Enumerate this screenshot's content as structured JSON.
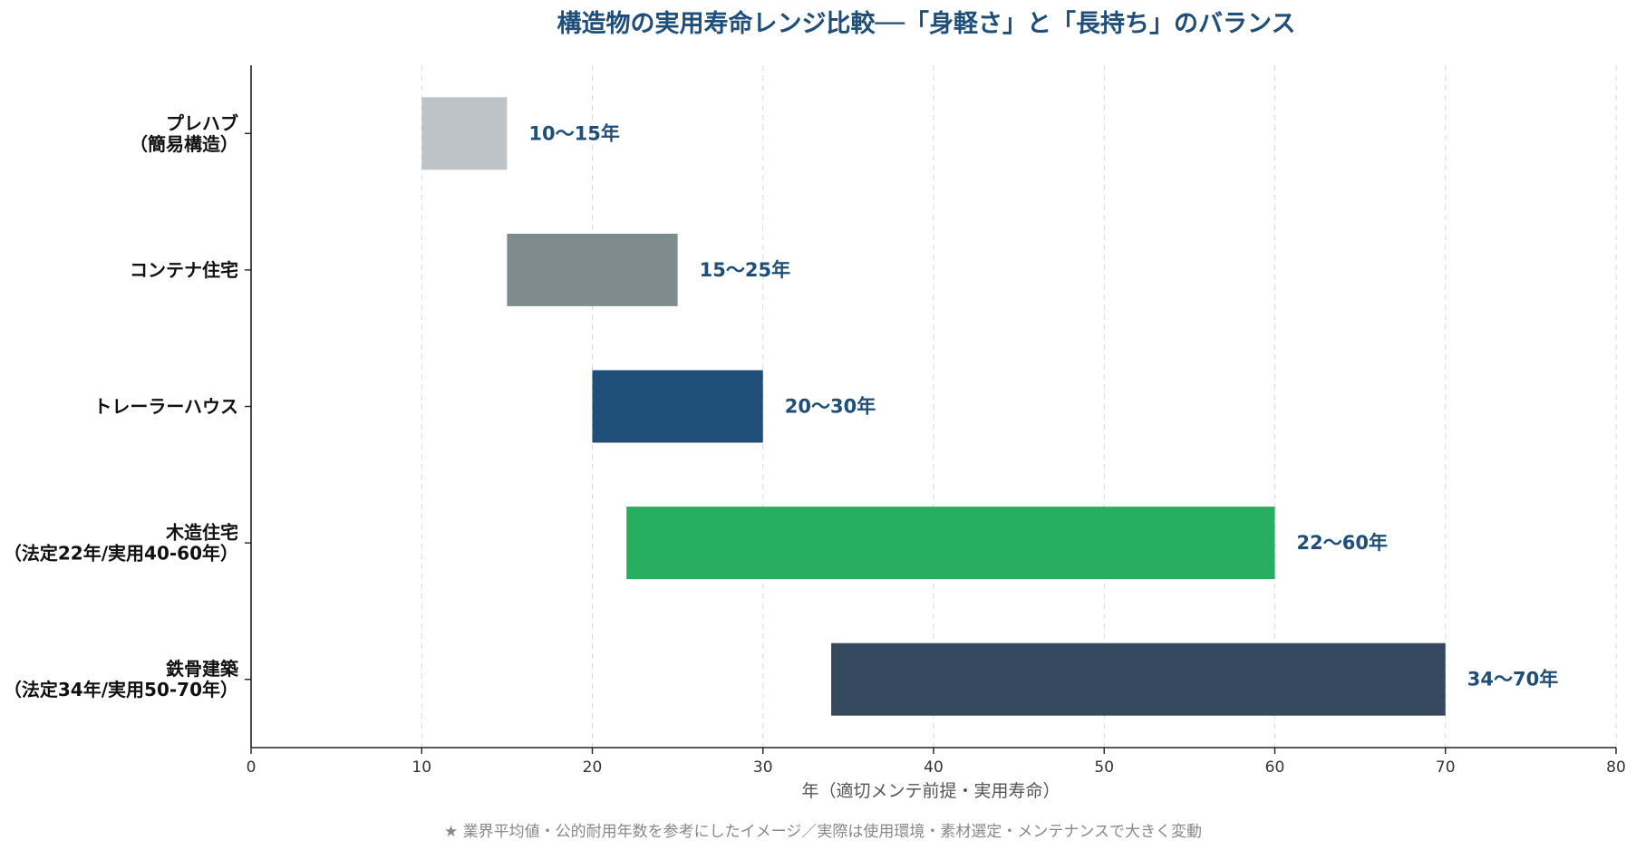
{
  "chart_data": {
    "type": "bar",
    "orientation": "horizontal",
    "subtype": "range",
    "title": "構造物の実用寿命レンジ比較──「身軽さ」と「長持ち」のバランス",
    "xlabel": "年（適切メンテ前提・実用寿命）",
    "ylabel": "",
    "xlim": [
      0,
      80
    ],
    "xticks": [
      0,
      10,
      20,
      30,
      40,
      50,
      60,
      70,
      80
    ],
    "grid": "vertical-dashed",
    "categories": [
      [
        "プレハブ",
        "（簡易構造）"
      ],
      [
        "コンテナ住宅"
      ],
      [
        "トレーラーハウス"
      ],
      [
        "木造住宅",
        "（法定22年/実用40-60年）"
      ],
      [
        "鉄骨建築",
        "（法定34年/実用50-70年）"
      ]
    ],
    "ranges": [
      {
        "start": 10,
        "end": 15,
        "label": "10〜15年",
        "color": "#bdc3c7"
      },
      {
        "start": 15,
        "end": 25,
        "label": "15〜25年",
        "color": "#7f8c8d"
      },
      {
        "start": 20,
        "end": 30,
        "label": "20〜30年",
        "color": "#1f4e79"
      },
      {
        "start": 22,
        "end": 60,
        "label": "22〜60年",
        "color": "#27ae60"
      },
      {
        "start": 34,
        "end": 70,
        "label": "34〜70年",
        "color": "#34495e"
      }
    ],
    "footnote": "★ 業界平均値・公的耐用年数を参考にしたイメージ／実際は使用環境・素材選定・メンテナンスで大きく変動"
  }
}
